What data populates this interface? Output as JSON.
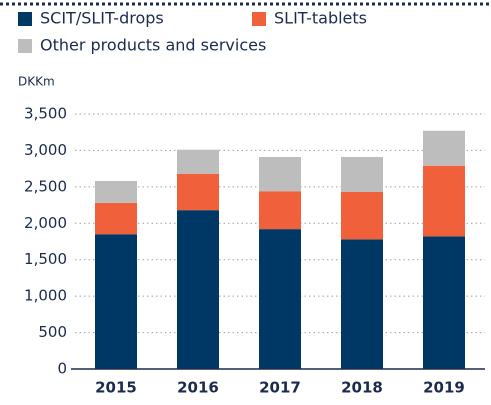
{
  "chart_data": {
    "type": "stacked_bar",
    "y_axis_label": "DKKm",
    "categories": [
      "2015",
      "2016",
      "2017",
      "2018",
      "2019"
    ],
    "series": [
      {
        "name": "SCIT/SLIT-drops",
        "color": "#003865",
        "values": [
          1850,
          2180,
          1920,
          1780,
          1820
        ]
      },
      {
        "name": "SLIT-tablets",
        "color": "#f0603a",
        "values": [
          430,
          500,
          520,
          650,
          970
        ]
      },
      {
        "name": "Other products and services",
        "color": "#bdbdbd",
        "values": [
          300,
          330,
          470,
          480,
          480
        ]
      }
    ],
    "ylim": [
      0,
      3500
    ],
    "yticks": [
      0,
      500,
      {
        "value": 1000,
        "label": "1,000"
      },
      {
        "value": 1500,
        "label": "1,500"
      },
      {
        "value": 2000,
        "label": "2,000"
      },
      {
        "value": 2500,
        "label": "2,500"
      },
      {
        "value": 3000,
        "label": "3,000"
      },
      {
        "value": 3500,
        "label": "3,500"
      }
    ],
    "grid": true
  }
}
